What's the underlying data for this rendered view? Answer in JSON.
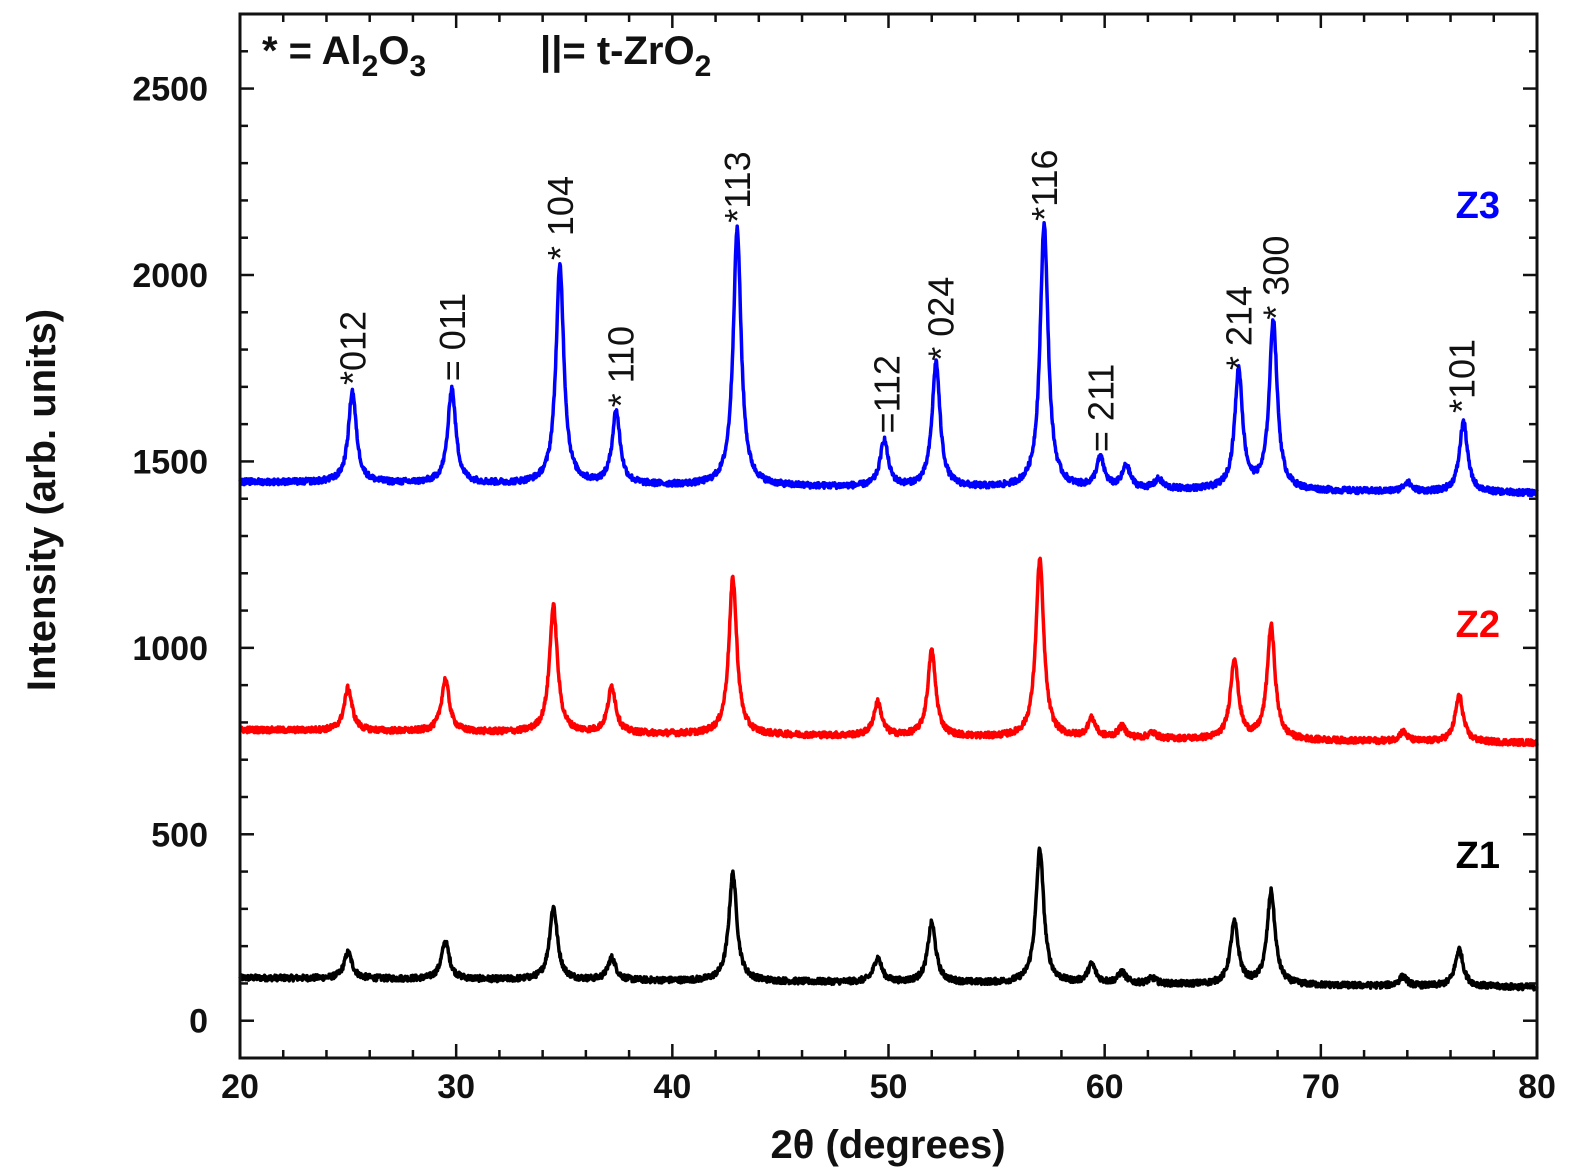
{
  "chart_data": {
    "type": "line",
    "title": "",
    "xlabel": "2θ (degrees)",
    "ylabel": "Intensity (arb. units)",
    "xlim": [
      20,
      80
    ],
    "ylim": [
      -100,
      2700
    ],
    "xticks": [
      20,
      30,
      40,
      50,
      60,
      70,
      80
    ],
    "yticks": [
      0,
      500,
      1000,
      1500,
      2000,
      2500
    ],
    "grid": false,
    "legend": {
      "position": "top-left",
      "entries": [
        {
          "symbol": "*",
          "eq": " = ",
          "base": "Al",
          "sub1": "2",
          "mid": "O",
          "sub2": "3"
        },
        {
          "symbol": "||",
          "eq": "= ",
          "base": "t-ZrO",
          "sub1": "2",
          "mid": "",
          "sub2": ""
        }
      ]
    },
    "series": [
      {
        "name": "Z1",
        "color": "#000000",
        "baseline": 115,
        "baseline_end": 90,
        "peaks": [
          [
            25.0,
            70
          ],
          [
            29.5,
            100
          ],
          [
            34.5,
            195
          ],
          [
            37.2,
            60
          ],
          [
            42.8,
            290
          ],
          [
            49.5,
            65
          ],
          [
            52.0,
            160
          ],
          [
            57.0,
            360
          ],
          [
            59.4,
            50
          ],
          [
            60.8,
            30
          ],
          [
            62.2,
            15
          ],
          [
            66.0,
            165
          ],
          [
            67.7,
            250
          ],
          [
            73.8,
            25
          ],
          [
            76.4,
            100
          ]
        ]
      },
      {
        "name": "Z2",
        "color": "#ff0000",
        "baseline": 780,
        "baseline_end": 745,
        "peaks": [
          [
            25.0,
            115
          ],
          [
            29.5,
            140
          ],
          [
            34.5,
            340
          ],
          [
            37.2,
            125
          ],
          [
            42.8,
            420
          ],
          [
            49.5,
            90
          ],
          [
            52.0,
            230
          ],
          [
            57.0,
            480
          ],
          [
            59.4,
            50
          ],
          [
            60.8,
            30
          ],
          [
            62.2,
            15
          ],
          [
            66.0,
            215
          ],
          [
            67.7,
            305
          ],
          [
            73.8,
            25
          ],
          [
            76.4,
            125
          ]
        ]
      },
      {
        "name": "Z3",
        "color": "#0000ff",
        "baseline": 1445,
        "baseline_end": 1415,
        "peaks": [
          [
            25.2,
            245
          ],
          [
            29.8,
            255
          ],
          [
            34.8,
            585
          ],
          [
            37.4,
            195
          ],
          [
            43.0,
            690
          ],
          [
            49.8,
            125
          ],
          [
            52.2,
            335
          ],
          [
            57.2,
            710
          ],
          [
            59.8,
            80
          ],
          [
            61.0,
            60
          ],
          [
            62.5,
            25
          ],
          [
            66.2,
            320
          ],
          [
            67.8,
            455
          ],
          [
            74.0,
            25
          ],
          [
            76.6,
            190
          ]
        ]
      }
    ],
    "peak_labels": [
      {
        "x": 25.2,
        "y": 1705,
        "text": "*012"
      },
      {
        "x": 29.8,
        "y": 1715,
        "text": "= 011"
      },
      {
        "x": 34.8,
        "y": 2040,
        "text": "* 104"
      },
      {
        "x": 37.6,
        "y": 1645,
        "text": "* 110"
      },
      {
        "x": 43.0,
        "y": 2140,
        "text": "*113"
      },
      {
        "x": 49.9,
        "y": 1575,
        "text": "=112"
      },
      {
        "x": 52.4,
        "y": 1770,
        "text": "* 024"
      },
      {
        "x": 57.2,
        "y": 2145,
        "text": "*116"
      },
      {
        "x": 59.8,
        "y": 1525,
        "text": "= 211"
      },
      {
        "x": 66.2,
        "y": 1745,
        "text": "* 214"
      },
      {
        "x": 67.9,
        "y": 1880,
        "text": "* 300"
      },
      {
        "x": 76.5,
        "y": 1630,
        "text": "*101"
      }
    ]
  }
}
